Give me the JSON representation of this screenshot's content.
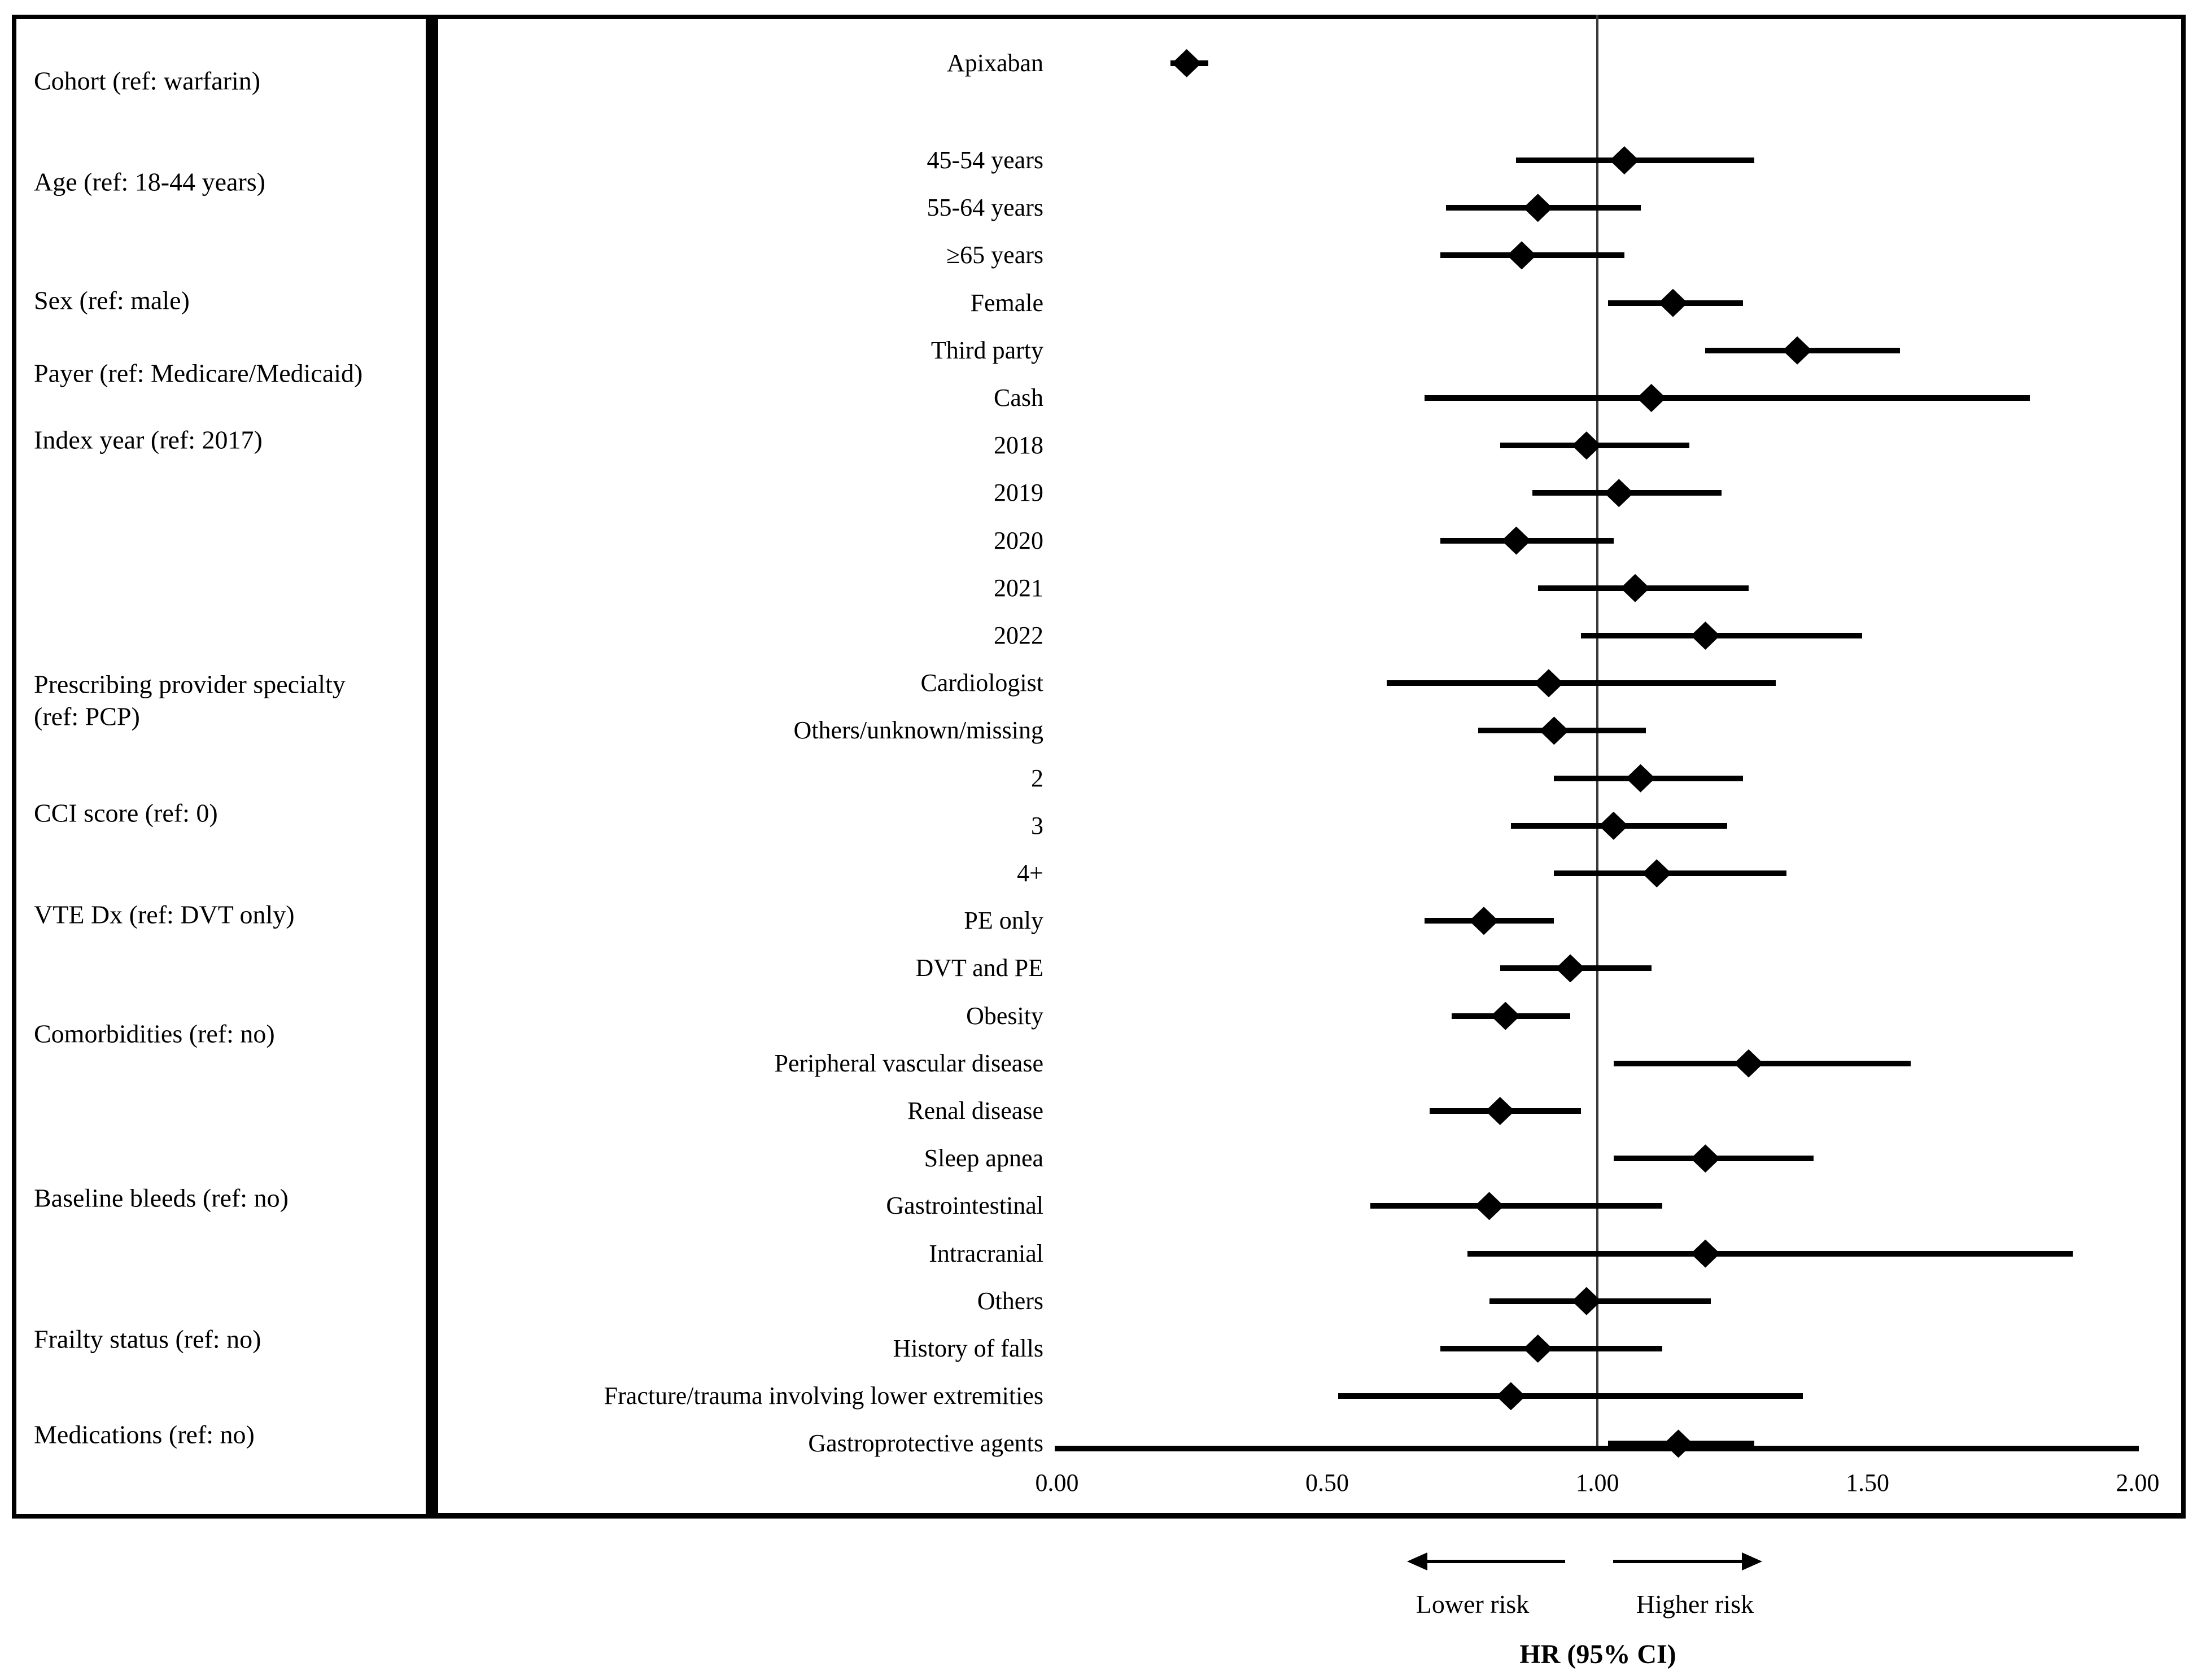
{
  "chart_data": {
    "type": "forest",
    "title": "",
    "xlabel": "HR (95% CI)",
    "xlim": [
      0,
      2
    ],
    "grid": false,
    "reference_value": 1.0,
    "x_ticks": [
      {
        "label": "0.00",
        "value": 0.0
      },
      {
        "label": "0.50",
        "value": 0.5
      },
      {
        "label": "1.00",
        "value": 1.0
      },
      {
        "label": "1.50",
        "value": 1.5
      },
      {
        "label": "2.00",
        "value": 2.0
      }
    ],
    "annotations": {
      "lower_risk_label": "Lower risk",
      "higher_risk_label": "Higher risk"
    },
    "marker_color": "#000000",
    "categories": [
      {
        "label": "Cohort (ref: warfarin)",
        "anchor_row": 0,
        "nudge": 0.37
      },
      {
        "label": "Age (ref: 18-44 years)",
        "anchor_row": 1,
        "nudge": 0.45
      },
      {
        "label": "Sex (ref: male)",
        "anchor_row": 4,
        "nudge": -0.06
      },
      {
        "label": "Payer (ref: Medicare/Medicaid)",
        "anchor_row": 5,
        "nudge": 0.48
      },
      {
        "label": "Index year (ref: 2017)",
        "anchor_row": 7,
        "nudge": -0.12
      },
      {
        "label": "Prescribing provider specialty\n(ref: PCP)",
        "anchor_row": 12,
        "nudge": 0.36
      },
      {
        "label": "CCI score (ref: 0)",
        "anchor_row": 15,
        "nudge": -0.27
      },
      {
        "label": "VTE Dx (ref: DVT only)",
        "anchor_row": 17,
        "nudge": -0.13
      },
      {
        "label": "Comorbidities (ref: no)",
        "anchor_row": 19,
        "nudge": 0.37
      },
      {
        "label": "Baseline bleeds (ref: no)",
        "anchor_row": 23,
        "nudge": -0.17
      },
      {
        "label": "Frailty status (ref: no)",
        "anchor_row": 26,
        "nudge": -0.2
      },
      {
        "label": "Medications (ref: no)",
        "anchor_row": 28,
        "nudge": -0.19
      }
    ],
    "rows": [
      {
        "label": "Apixaban",
        "hr": 0.24,
        "lo": 0.21,
        "hi": 0.28
      },
      {
        "label": "45-54 years",
        "hr": 1.05,
        "lo": 0.85,
        "hi": 1.29
      },
      {
        "label": "55-64 years",
        "hr": 0.89,
        "lo": 0.72,
        "hi": 1.08
      },
      {
        "label": "≥65 years",
        "hr": 0.86,
        "lo": 0.71,
        "hi": 1.05
      },
      {
        "label": "Female",
        "hr": 1.14,
        "lo": 1.02,
        "hi": 1.27
      },
      {
        "label": "Third party",
        "hr": 1.37,
        "lo": 1.2,
        "hi": 1.56
      },
      {
        "label": "Cash",
        "hr": 1.1,
        "lo": 0.68,
        "hi": 1.8
      },
      {
        "label": "2018",
        "hr": 0.98,
        "lo": 0.82,
        "hi": 1.17
      },
      {
        "label": "2019",
        "hr": 1.04,
        "lo": 0.88,
        "hi": 1.23
      },
      {
        "label": "2020",
        "hr": 0.85,
        "lo": 0.71,
        "hi": 1.03
      },
      {
        "label": "2021",
        "hr": 1.07,
        "lo": 0.89,
        "hi": 1.28
      },
      {
        "label": "2022",
        "hr": 1.2,
        "lo": 0.97,
        "hi": 1.49
      },
      {
        "label": "Cardiologist",
        "hr": 0.91,
        "lo": 0.61,
        "hi": 1.33
      },
      {
        "label": "Others/unknown/missing",
        "hr": 0.92,
        "lo": 0.78,
        "hi": 1.09
      },
      {
        "label": "2",
        "hr": 1.08,
        "lo": 0.92,
        "hi": 1.27
      },
      {
        "label": "3",
        "hr": 1.03,
        "lo": 0.84,
        "hi": 1.24
      },
      {
        "label": "4+",
        "hr": 1.11,
        "lo": 0.92,
        "hi": 1.35
      },
      {
        "label": "PE only",
        "hr": 0.79,
        "lo": 0.68,
        "hi": 0.92
      },
      {
        "label": "DVT and PE",
        "hr": 0.95,
        "lo": 0.82,
        "hi": 1.1
      },
      {
        "label": "Obesity",
        "hr": 0.83,
        "lo": 0.73,
        "hi": 0.95
      },
      {
        "label": "Peripheral vascular disease",
        "hr": 1.28,
        "lo": 1.03,
        "hi": 1.58
      },
      {
        "label": "Renal disease",
        "hr": 0.82,
        "lo": 0.69,
        "hi": 0.97
      },
      {
        "label": "Sleep apnea",
        "hr": 1.2,
        "lo": 1.03,
        "hi": 1.4
      },
      {
        "label": "Gastrointestinal",
        "hr": 0.8,
        "lo": 0.58,
        "hi": 1.12
      },
      {
        "label": "Intracranial",
        "hr": 1.2,
        "lo": 0.76,
        "hi": 1.88
      },
      {
        "label": "Others",
        "hr": 0.98,
        "lo": 0.8,
        "hi": 1.21
      },
      {
        "label": "History of falls",
        "hr": 0.89,
        "lo": 0.71,
        "hi": 1.12
      },
      {
        "label": "Fracture/trauma involving lower extremities",
        "hr": 0.84,
        "lo": 0.52,
        "hi": 1.38
      },
      {
        "label": "Gastroprotective agents",
        "hr": 1.15,
        "lo": 1.02,
        "hi": 1.29
      }
    ]
  }
}
